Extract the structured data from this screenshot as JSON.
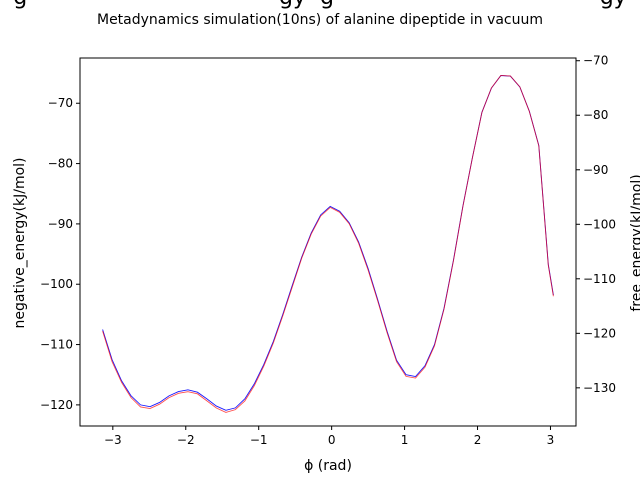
{
  "chart_data": {
    "type": "line",
    "title": "Metadynamics simulation(10ns) of alanine dipeptide in vacuum",
    "suptitle_fragment": "g                                    gy  g                                      gy",
    "xlabel": "ϕ (rad)",
    "ylabel_left": "negative_energy(kJ/mol)",
    "ylabel_right": "free_energy(kJ/mol)",
    "xlim": [
      -3.45,
      3.35
    ],
    "ylim_left": [
      -123.5,
      -62.5
    ],
    "ylim_right": [
      -137.0,
      -69.5
    ],
    "xticks": [
      -3,
      -2,
      -1,
      0,
      1,
      2,
      3
    ],
    "xtick_labels": [
      "−3",
      "−2",
      "−1",
      "0",
      "1",
      "2",
      "3"
    ],
    "yticks_left": [
      -70,
      -80,
      -90,
      -100,
      -110,
      -120
    ],
    "ytick_labels_left": [
      "−70",
      "−80",
      "−90",
      "−100",
      "−110",
      "−120"
    ],
    "yticks_right": [
      -70,
      -80,
      -90,
      -100,
      -110,
      -120,
      -130
    ],
    "ytick_labels_right": [
      "−70",
      "−80",
      "−90",
      "−100",
      "−110",
      "−120",
      "−130"
    ],
    "colors": {
      "ylabel_left": "#0000ff",
      "ylabel_right": "#ff0000",
      "series_left": "#0000ff",
      "series_right": "#ff0000",
      "series_overlap": "#990066"
    },
    "x": [
      -3.14,
      -3.01,
      -2.88,
      -2.75,
      -2.62,
      -2.49,
      -2.36,
      -2.23,
      -2.1,
      -1.97,
      -1.84,
      -1.71,
      -1.58,
      -1.45,
      -1.32,
      -1.19,
      -1.06,
      -0.93,
      -0.8,
      -0.67,
      -0.54,
      -0.41,
      -0.28,
      -0.15,
      -0.02,
      0.11,
      0.24,
      0.37,
      0.5,
      0.63,
      0.76,
      0.89,
      1.02,
      1.15,
      1.28,
      1.41,
      1.54,
      1.67,
      1.8,
      1.93,
      2.06,
      2.19,
      2.32,
      2.45,
      2.58,
      2.71,
      2.84,
      2.97,
      3.04
    ],
    "series": [
      {
        "axis": "left",
        "values": [
          -107.5,
          -112.5,
          -116,
          -118.5,
          -120.0,
          -120.3,
          -119.6,
          -118.5,
          -117.8,
          -117.5,
          -117.9,
          -119.0,
          -120.2,
          -120.9,
          -120.5,
          -119.0,
          -116.5,
          -113.3,
          -109.5,
          -105.0,
          -100.2,
          -95.5,
          -91.5,
          -88.5,
          -87.1,
          -87.9,
          -89.8,
          -93.0,
          -97.4,
          -102.5,
          -107.8,
          -112.6,
          -115.0,
          -115.3,
          -113.5,
          -110.0,
          -104.0,
          -96.0,
          -87.0,
          -79.0,
          -71.5,
          -67.5,
          -65.4,
          -65.5,
          -67.3,
          -71.3,
          -77.0,
          -96.7,
          -101.8
        ]
      },
      {
        "axis": "right",
        "values": [
          -119.6,
          -125.2,
          -129.0,
          -131.8,
          -133.5,
          -133.8,
          -133.0,
          -131.8,
          -131.0,
          -130.7,
          -131.1,
          -132.4,
          -133.7,
          -134.5,
          -134.0,
          -132.4,
          -129.6,
          -126.0,
          -121.8,
          -116.8,
          -111.5,
          -106.2,
          -101.8,
          -98.5,
          -96.9,
          -97.8,
          -99.9,
          -103.5,
          -108.4,
          -114.0,
          -119.9,
          -125.2,
          -127.9,
          -128.2,
          -126.2,
          -122.3,
          -115.6,
          -106.7,
          -96.7,
          -87.8,
          -79.5,
          -75.0,
          -72.7,
          -72.8,
          -74.8,
          -79.3,
          -85.6,
          -107.5,
          -113.2
        ]
      }
    ]
  }
}
